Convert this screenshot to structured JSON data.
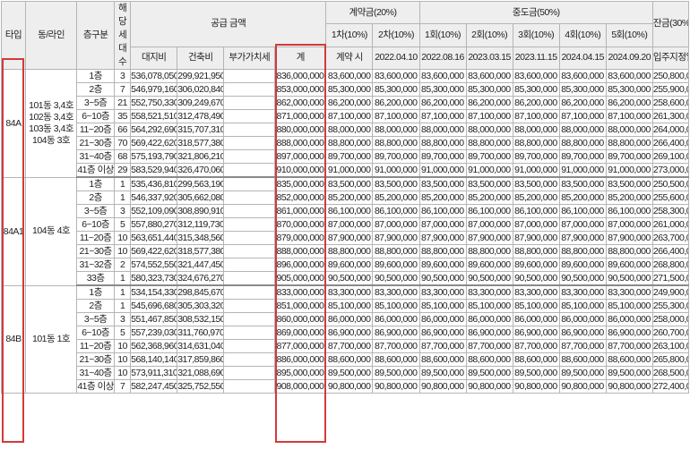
{
  "header": {
    "type": "타입",
    "dong_line": "동/라인",
    "floor": "층구분",
    "units": "해당세대수",
    "supply": "공급 금액",
    "land": "대지비",
    "building": "건축비",
    "vat": "부가가치세",
    "total": "계",
    "contract": "계약금(20%)",
    "c1": "1차(10%)",
    "c2": "2차(10%)",
    "c1_date": "계약 시",
    "c2_date": "2022.04.10",
    "middle": "중도금(50%)",
    "m1": "1회(10%)",
    "m2": "2회(10%)",
    "m3": "3회(10%)",
    "m4": "4회(10%)",
    "m5": "5회(10%)",
    "m1_date": "2022.08.16",
    "m2_date": "2023.03.15",
    "m3_date": "2023.11.15",
    "m4_date": "2024.04.15",
    "m5_date": "2024.09.20",
    "balance": "잔금(30%)",
    "balance_date": "입주지정일"
  },
  "groups": [
    {
      "type": "84A",
      "dong": "101동 3,4호\n102동 3,4호\n103동 3,4호\n104동 3호",
      "rows": [
        {
          "floor": "1층",
          "units": "3",
          "land": "536,078,050",
          "bldg": "299,921,950",
          "vat": "",
          "total": "836,000,000",
          "c1": "83,600,000",
          "c2": "83,600,000",
          "m1": "83,600,000",
          "m2": "83,600,000",
          "m3": "83,600,000",
          "m4": "83,600,000",
          "m5": "83,600,000",
          "bal": "250,800,000"
        },
        {
          "floor": "2층",
          "units": "7",
          "land": "546,979,160",
          "bldg": "306,020,840",
          "vat": "",
          "total": "853,000,000",
          "c1": "85,300,000",
          "c2": "85,300,000",
          "m1": "85,300,000",
          "m2": "85,300,000",
          "m3": "85,300,000",
          "m4": "85,300,000",
          "m5": "85,300,000",
          "bal": "255,900,000"
        },
        {
          "floor": "3~5층",
          "units": "21",
          "land": "552,750,330",
          "bldg": "309,249,670",
          "vat": "",
          "total": "862,000,000",
          "c1": "86,200,000",
          "c2": "86,200,000",
          "m1": "86,200,000",
          "m2": "86,200,000",
          "m3": "86,200,000",
          "m4": "86,200,000",
          "m5": "86,200,000",
          "bal": "258,600,000"
        },
        {
          "floor": "6~10층",
          "units": "35",
          "land": "558,521,510",
          "bldg": "312,478,490",
          "vat": "",
          "total": "871,000,000",
          "c1": "87,100,000",
          "c2": "87,100,000",
          "m1": "87,100,000",
          "m2": "87,100,000",
          "m3": "87,100,000",
          "m4": "87,100,000",
          "m5": "87,100,000",
          "bal": "261,300,000"
        },
        {
          "floor": "11~20층",
          "units": "66",
          "land": "564,292,690",
          "bldg": "315,707,310",
          "vat": "",
          "total": "880,000,000",
          "c1": "88,000,000",
          "c2": "88,000,000",
          "m1": "88,000,000",
          "m2": "88,000,000",
          "m3": "88,000,000",
          "m4": "88,000,000",
          "m5": "88,000,000",
          "bal": "264,000,000"
        },
        {
          "floor": "21~30층",
          "units": "70",
          "land": "569,422,620",
          "bldg": "318,577,380",
          "vat": "",
          "total": "888,000,000",
          "c1": "88,800,000",
          "c2": "88,800,000",
          "m1": "88,800,000",
          "m2": "88,800,000",
          "m3": "88,800,000",
          "m4": "88,800,000",
          "m5": "88,800,000",
          "bal": "266,400,000"
        },
        {
          "floor": "31~40층",
          "units": "68",
          "land": "575,193,790",
          "bldg": "321,806,210",
          "vat": "",
          "total": "897,000,000",
          "c1": "89,700,000",
          "c2": "89,700,000",
          "m1": "89,700,000",
          "m2": "89,700,000",
          "m3": "89,700,000",
          "m4": "89,700,000",
          "m5": "89,700,000",
          "bal": "269,100,000"
        },
        {
          "floor": "41층 이상",
          "units": "29",
          "land": "583,529,940",
          "bldg": "326,470,060",
          "vat": "",
          "total": "910,000,000",
          "c1": "91,000,000",
          "c2": "91,000,000",
          "m1": "91,000,000",
          "m2": "91,000,000",
          "m3": "91,000,000",
          "m4": "91,000,000",
          "m5": "91,000,000",
          "bal": "273,000,000"
        }
      ]
    },
    {
      "type": "84A1",
      "dong": "104동 4호",
      "rows": [
        {
          "floor": "1층",
          "units": "1",
          "land": "535,436,810",
          "bldg": "299,563,190",
          "vat": "",
          "total": "835,000,000",
          "c1": "83,500,000",
          "c2": "83,500,000",
          "m1": "83,500,000",
          "m2": "83,500,000",
          "m3": "83,500,000",
          "m4": "83,500,000",
          "m5": "83,500,000",
          "bal": "250,500,000"
        },
        {
          "floor": "2층",
          "units": "1",
          "land": "546,337,920",
          "bldg": "305,662,080",
          "vat": "",
          "total": "852,000,000",
          "c1": "85,200,000",
          "c2": "85,200,000",
          "m1": "85,200,000",
          "m2": "85,200,000",
          "m3": "85,200,000",
          "m4": "85,200,000",
          "m5": "85,200,000",
          "bal": "255,600,000"
        },
        {
          "floor": "3~5층",
          "units": "3",
          "land": "552,109,090",
          "bldg": "308,890,910",
          "vat": "",
          "total": "861,000,000",
          "c1": "86,100,000",
          "c2": "86,100,000",
          "m1": "86,100,000",
          "m2": "86,100,000",
          "m3": "86,100,000",
          "m4": "86,100,000",
          "m5": "86,100,000",
          "bal": "258,300,000"
        },
        {
          "floor": "6~10층",
          "units": "5",
          "land": "557,880,270",
          "bldg": "312,119,730",
          "vat": "",
          "total": "870,000,000",
          "c1": "87,000,000",
          "c2": "87,000,000",
          "m1": "87,000,000",
          "m2": "87,000,000",
          "m3": "87,000,000",
          "m4": "87,000,000",
          "m5": "87,000,000",
          "bal": "261,000,000"
        },
        {
          "floor": "11~20층",
          "units": "10",
          "land": "563,651,440",
          "bldg": "315,348,560",
          "vat": "",
          "total": "879,000,000",
          "c1": "87,900,000",
          "c2": "87,900,000",
          "m1": "87,900,000",
          "m2": "87,900,000",
          "m3": "87,900,000",
          "m4": "87,900,000",
          "m5": "87,900,000",
          "bal": "263,700,000"
        },
        {
          "floor": "21~30층",
          "units": "10",
          "land": "569,422,620",
          "bldg": "318,577,380",
          "vat": "",
          "total": "888,000,000",
          "c1": "88,800,000",
          "c2": "88,800,000",
          "m1": "88,800,000",
          "m2": "88,800,000",
          "m3": "88,800,000",
          "m4": "88,800,000",
          "m5": "88,800,000",
          "bal": "266,400,000"
        },
        {
          "floor": "31~32층",
          "units": "2",
          "land": "574,552,550",
          "bldg": "321,447,450",
          "vat": "",
          "total": "896,000,000",
          "c1": "89,600,000",
          "c2": "89,600,000",
          "m1": "89,600,000",
          "m2": "89,600,000",
          "m3": "89,600,000",
          "m4": "89,600,000",
          "m5": "89,600,000",
          "bal": "268,800,000"
        },
        {
          "floor": "33층",
          "units": "1",
          "land": "580,323,730",
          "bldg": "324,676,270",
          "vat": "",
          "total": "905,000,000",
          "c1": "90,500,000",
          "c2": "90,500,000",
          "m1": "90,500,000",
          "m2": "90,500,000",
          "m3": "90,500,000",
          "m4": "90,500,000",
          "m5": "90,500,000",
          "bal": "271,500,000"
        }
      ]
    },
    {
      "type": "84B",
      "dong": "101동 1호",
      "rows": [
        {
          "floor": "1층",
          "units": "1",
          "land": "534,154,330",
          "bldg": "298,845,670",
          "vat": "",
          "total": "833,000,000",
          "c1": "83,300,000",
          "c2": "83,300,000",
          "m1": "83,300,000",
          "m2": "83,300,000",
          "m3": "83,300,000",
          "m4": "83,300,000",
          "m5": "83,300,000",
          "bal": "249,900,000"
        },
        {
          "floor": "2층",
          "units": "1",
          "land": "545,696,680",
          "bldg": "305,303,320",
          "vat": "",
          "total": "851,000,000",
          "c1": "85,100,000",
          "c2": "85,100,000",
          "m1": "85,100,000",
          "m2": "85,100,000",
          "m3": "85,100,000",
          "m4": "85,100,000",
          "m5": "85,100,000",
          "bal": "255,300,000"
        },
        {
          "floor": "3~5층",
          "units": "3",
          "land": "551,467,850",
          "bldg": "308,532,150",
          "vat": "",
          "total": "860,000,000",
          "c1": "86,000,000",
          "c2": "86,000,000",
          "m1": "86,000,000",
          "m2": "86,000,000",
          "m3": "86,000,000",
          "m4": "86,000,000",
          "m5": "86,000,000",
          "bal": "258,000,000"
        },
        {
          "floor": "6~10층",
          "units": "5",
          "land": "557,239,030",
          "bldg": "311,760,970",
          "vat": "",
          "total": "869,000,000",
          "c1": "86,900,000",
          "c2": "86,900,000",
          "m1": "86,900,000",
          "m2": "86,900,000",
          "m3": "86,900,000",
          "m4": "86,900,000",
          "m5": "86,900,000",
          "bal": "260,700,000"
        },
        {
          "floor": "11~20층",
          "units": "10",
          "land": "562,368,960",
          "bldg": "314,631,040",
          "vat": "",
          "total": "877,000,000",
          "c1": "87,700,000",
          "c2": "87,700,000",
          "m1": "87,700,000",
          "m2": "87,700,000",
          "m3": "87,700,000",
          "m4": "87,700,000",
          "m5": "87,700,000",
          "bal": "263,100,000"
        },
        {
          "floor": "21~30층",
          "units": "10",
          "land": "568,140,140",
          "bldg": "317,859,860",
          "vat": "",
          "total": "886,000,000",
          "c1": "88,600,000",
          "c2": "88,600,000",
          "m1": "88,600,000",
          "m2": "88,600,000",
          "m3": "88,600,000",
          "m4": "88,600,000",
          "m5": "88,600,000",
          "bal": "265,800,000"
        },
        {
          "floor": "31~40층",
          "units": "10",
          "land": "573,911,310",
          "bldg": "321,088,690",
          "vat": "",
          "total": "895,000,000",
          "c1": "89,500,000",
          "c2": "89,500,000",
          "m1": "89,500,000",
          "m2": "89,500,000",
          "m3": "89,500,000",
          "m4": "89,500,000",
          "m5": "89,500,000",
          "bal": "268,500,000"
        },
        {
          "floor": "41층 이상",
          "units": "7",
          "land": "582,247,450",
          "bldg": "325,752,550",
          "vat": "",
          "total": "908,000,000",
          "c1": "90,800,000",
          "c2": "90,800,000",
          "m1": "90,800,000",
          "m2": "90,800,000",
          "m3": "90,800,000",
          "m4": "90,800,000",
          "m5": "90,800,000",
          "bal": "272,400,000"
        }
      ]
    }
  ]
}
